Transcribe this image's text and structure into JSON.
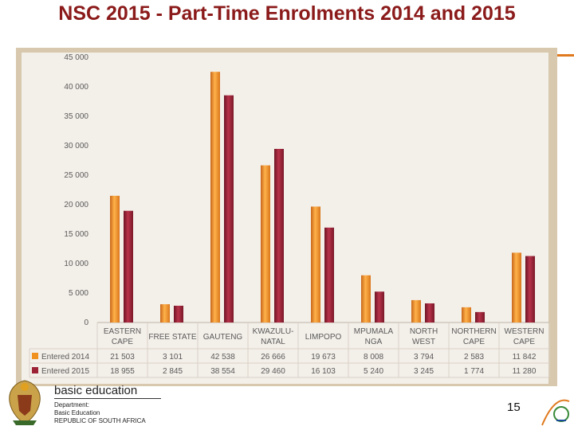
{
  "title": "NSC 2015 - Part-Time Enrolments 2014 and 2015",
  "footer": {
    "logo_text": "basic education",
    "dept_line1": "Department:",
    "dept_line2": "Basic Education",
    "dept_line3": "REPUBLIC OF SOUTH AFRICA",
    "page_number": "15"
  },
  "chart_data": {
    "type": "bar",
    "categories": [
      [
        "EASTERN",
        "CAPE"
      ],
      [
        "FREE STATE"
      ],
      [
        "GAUTENG"
      ],
      [
        "KWAZULU-",
        "NATAL"
      ],
      [
        "LIMPOPO"
      ],
      [
        "MPUMALA",
        "NGA"
      ],
      [
        "NORTH",
        "WEST"
      ],
      [
        "NORTHERN",
        "CAPE"
      ],
      [
        "WESTERN",
        "CAPE"
      ]
    ],
    "yticks": [
      "0",
      "5 000",
      "10 000",
      "15 000",
      "20 000",
      "25 000",
      "30 000",
      "35 000",
      "40 000",
      "45 000"
    ],
    "ylim": [
      0,
      45000
    ],
    "series": [
      {
        "name": "Entered 2014",
        "color": "#f0901e",
        "values": [
          21503,
          3101,
          42538,
          26666,
          19673,
          8008,
          3794,
          2583,
          11842
        ],
        "labels": [
          "21 503",
          "3 101",
          "42 538",
          "26 666",
          "19 673",
          "8 008",
          "3 794",
          "2 583",
          "11 842"
        ]
      },
      {
        "name": "Entered 2015",
        "color": "#9b2335",
        "values": [
          18955,
          2845,
          38554,
          29460,
          16103,
          5240,
          3245,
          1774,
          11280
        ],
        "labels": [
          "18 955",
          "2 845",
          "38 554",
          "29 460",
          "16 103",
          "5 240",
          "3 245",
          "1 774",
          "11 280"
        ]
      }
    ],
    "legend": "table-below",
    "grid": false
  }
}
